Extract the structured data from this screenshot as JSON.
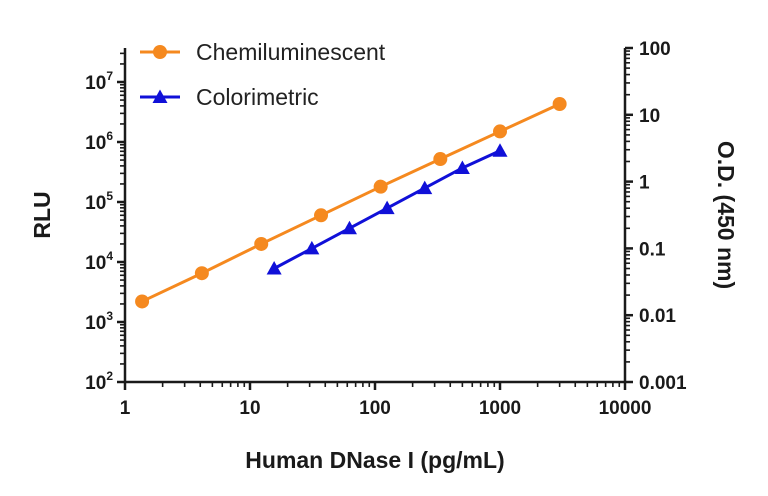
{
  "chart_data": {
    "type": "line",
    "xlabel": "Human DNase I (pg/mL)",
    "ylabel": "RLU",
    "y2label": "O.D. (450 nm)",
    "x_scale": "log",
    "y_scale": "log",
    "y2_scale": "log",
    "xlim": [
      1,
      10000
    ],
    "ylim": [
      100,
      30000000
    ],
    "y2lim": [
      0.001,
      100
    ],
    "x_ticks": [
      "1",
      "10",
      "100",
      "1000",
      "10000"
    ],
    "y_ticks": [
      {
        "value": 100,
        "base": "10",
        "exp": "2"
      },
      {
        "value": 1000,
        "base": "10",
        "exp": "3"
      },
      {
        "value": 10000,
        "base": "10",
        "exp": "4"
      },
      {
        "value": 100000,
        "base": "10",
        "exp": "5"
      },
      {
        "value": 1000000,
        "base": "10",
        "exp": "6"
      },
      {
        "value": 10000000,
        "base": "10",
        "exp": "7"
      }
    ],
    "y2_ticks": [
      "0.001",
      "0.01",
      "0.1",
      "1",
      "10",
      "100"
    ],
    "legend_position": "top-left",
    "grid": false,
    "series": [
      {
        "name": "Chemiluminescent",
        "axis": "left",
        "color": "#f5891f",
        "marker": "circle",
        "x": [
          1.37,
          4.12,
          12.3,
          37,
          111,
          333,
          1000,
          3000
        ],
        "y": [
          2200,
          6500,
          20000,
          60000,
          180000,
          520000,
          1500000,
          4300000
        ]
      },
      {
        "name": "Colorimetric",
        "axis": "right",
        "color": "#1010d8",
        "marker": "triangle",
        "x": [
          15.6,
          31.25,
          62.5,
          125,
          250,
          500,
          1000
        ],
        "y": [
          0.05,
          0.1,
          0.2,
          0.4,
          0.8,
          1.6,
          2.9
        ]
      }
    ]
  }
}
